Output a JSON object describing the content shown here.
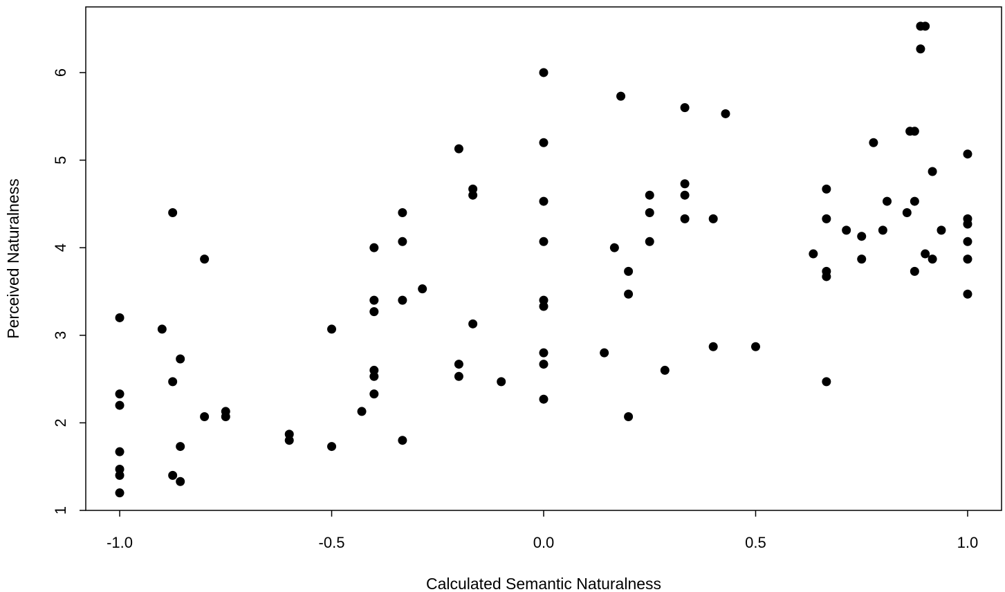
{
  "chart_data": {
    "type": "scatter",
    "xlabel": "Calculated Semantic Naturalness",
    "ylabel": "Perceived Naturalness",
    "xlim": [
      -1.08,
      1.08
    ],
    "ylim": [
      1.0,
      6.75
    ],
    "x_ticks": [
      -1.0,
      -0.5,
      0.0,
      0.5,
      1.0
    ],
    "x_tick_labels": [
      "-1.0",
      "-0.5",
      "0.0",
      "0.5",
      "1.0"
    ],
    "y_ticks": [
      1,
      2,
      3,
      4,
      5,
      6
    ],
    "y_tick_labels": [
      "1",
      "2",
      "3",
      "4",
      "5",
      "6"
    ],
    "grid": false,
    "marker_color": "#000000",
    "points": [
      [
        -1.0,
        3.2
      ],
      [
        -1.0,
        2.33
      ],
      [
        -1.0,
        2.2
      ],
      [
        -1.0,
        1.67
      ],
      [
        -1.0,
        1.47
      ],
      [
        -1.0,
        1.4
      ],
      [
        -1.0,
        1.2
      ],
      [
        -0.9,
        3.07
      ],
      [
        -0.875,
        4.4
      ],
      [
        -0.875,
        2.47
      ],
      [
        -0.875,
        1.4
      ],
      [
        -0.857,
        2.73
      ],
      [
        -0.857,
        1.73
      ],
      [
        -0.857,
        1.33
      ],
      [
        -0.8,
        3.87
      ],
      [
        -0.8,
        2.07
      ],
      [
        -0.75,
        2.13
      ],
      [
        -0.75,
        2.07
      ],
      [
        -0.6,
        1.87
      ],
      [
        -0.6,
        1.8
      ],
      [
        -0.5,
        3.07
      ],
      [
        -0.5,
        1.73
      ],
      [
        -0.429,
        2.13
      ],
      [
        -0.4,
        4.0
      ],
      [
        -0.4,
        3.4
      ],
      [
        -0.4,
        3.27
      ],
      [
        -0.4,
        2.6
      ],
      [
        -0.4,
        2.53
      ],
      [
        -0.4,
        2.33
      ],
      [
        -0.333,
        4.4
      ],
      [
        -0.333,
        4.07
      ],
      [
        -0.333,
        3.4
      ],
      [
        -0.333,
        1.8
      ],
      [
        -0.286,
        3.53
      ],
      [
        -0.2,
        5.13
      ],
      [
        -0.2,
        2.67
      ],
      [
        -0.2,
        2.53
      ],
      [
        -0.167,
        4.67
      ],
      [
        -0.167,
        4.6
      ],
      [
        -0.167,
        3.13
      ],
      [
        -0.1,
        2.47
      ],
      [
        0.0,
        6.0
      ],
      [
        0.0,
        5.2
      ],
      [
        0.0,
        4.53
      ],
      [
        0.0,
        4.07
      ],
      [
        0.0,
        3.4
      ],
      [
        0.0,
        3.33
      ],
      [
        0.0,
        2.8
      ],
      [
        0.0,
        2.67
      ],
      [
        0.0,
        2.27
      ],
      [
        0.143,
        2.8
      ],
      [
        0.167,
        4.0
      ],
      [
        0.182,
        5.73
      ],
      [
        0.2,
        3.73
      ],
      [
        0.2,
        3.47
      ],
      [
        0.2,
        2.07
      ],
      [
        0.25,
        4.6
      ],
      [
        0.25,
        4.4
      ],
      [
        0.25,
        4.07
      ],
      [
        0.286,
        2.6
      ],
      [
        0.333,
        5.6
      ],
      [
        0.333,
        4.73
      ],
      [
        0.333,
        4.6
      ],
      [
        0.333,
        4.33
      ],
      [
        0.4,
        4.33
      ],
      [
        0.4,
        2.87
      ],
      [
        0.429,
        5.53
      ],
      [
        0.5,
        2.87
      ],
      [
        0.636,
        3.93
      ],
      [
        0.667,
        4.67
      ],
      [
        0.667,
        4.33
      ],
      [
        0.667,
        3.73
      ],
      [
        0.667,
        3.67
      ],
      [
        0.667,
        2.47
      ],
      [
        0.714,
        4.2
      ],
      [
        0.75,
        4.13
      ],
      [
        0.75,
        3.87
      ],
      [
        0.778,
        5.2
      ],
      [
        0.8,
        4.2
      ],
      [
        0.81,
        4.53
      ],
      [
        0.857,
        4.4
      ],
      [
        0.864,
        5.33
      ],
      [
        0.875,
        5.33
      ],
      [
        0.875,
        4.53
      ],
      [
        0.875,
        3.73
      ],
      [
        0.889,
        6.53
      ],
      [
        0.9,
        6.53
      ],
      [
        0.889,
        6.27
      ],
      [
        0.9,
        3.93
      ],
      [
        0.917,
        4.87
      ],
      [
        0.917,
        3.87
      ],
      [
        0.938,
        4.2
      ],
      [
        1.0,
        5.07
      ],
      [
        1.0,
        4.33
      ],
      [
        1.0,
        4.27
      ],
      [
        1.0,
        4.07
      ],
      [
        1.0,
        3.87
      ],
      [
        1.0,
        3.47
      ]
    ]
  }
}
